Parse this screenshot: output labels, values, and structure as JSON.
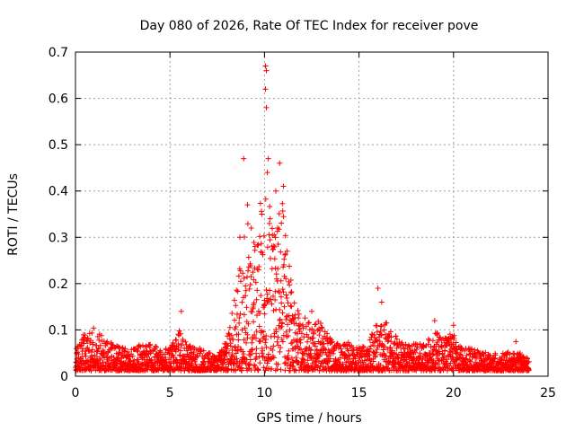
{
  "chart_data": {
    "type": "scatter",
    "title": "Day 080 of 2026, Rate Of TEC Index for receiver pove",
    "xlabel": "GPS time / hours",
    "ylabel": "ROTI / TECUs",
    "xlim": [
      0,
      25
    ],
    "ylim": [
      0,
      0.7
    ],
    "xticks": [
      0,
      5,
      10,
      15,
      20,
      25
    ],
    "yticks": [
      0,
      0.1,
      0.2,
      0.3,
      0.4,
      0.5,
      0.6,
      0.7
    ],
    "xtick_labels": [
      "0",
      "5",
      "10",
      "15",
      "20",
      "25"
    ],
    "ytick_labels": [
      "0",
      "0.1",
      "0.2",
      "0.3",
      "0.4",
      "0.5",
      "0.6",
      "0.7"
    ],
    "grid": true,
    "marker": "+",
    "color": "#ff0000",
    "data_range_x": [
      0,
      24
    ],
    "envelope": [
      [
        0.0,
        0.06
      ],
      [
        0.5,
        0.09
      ],
      [
        1.0,
        0.1
      ],
      [
        1.5,
        0.08
      ],
      [
        2.0,
        0.07
      ],
      [
        2.5,
        0.06
      ],
      [
        3.0,
        0.06
      ],
      [
        3.5,
        0.07
      ],
      [
        4.0,
        0.07
      ],
      [
        4.5,
        0.06
      ],
      [
        5.0,
        0.06
      ],
      [
        5.5,
        0.1
      ],
      [
        6.0,
        0.07
      ],
      [
        6.5,
        0.06
      ],
      [
        7.0,
        0.05
      ],
      [
        7.5,
        0.04
      ],
      [
        8.0,
        0.08
      ],
      [
        8.5,
        0.2
      ],
      [
        9.0,
        0.33
      ],
      [
        9.5,
        0.3
      ],
      [
        10.0,
        0.4
      ],
      [
        10.5,
        0.32
      ],
      [
        11.0,
        0.38
      ],
      [
        11.5,
        0.17
      ],
      [
        12.0,
        0.12
      ],
      [
        12.5,
        0.12
      ],
      [
        13.0,
        0.11
      ],
      [
        13.5,
        0.08
      ],
      [
        14.0,
        0.07
      ],
      [
        14.5,
        0.07
      ],
      [
        15.0,
        0.06
      ],
      [
        15.5,
        0.07
      ],
      [
        16.0,
        0.12
      ],
      [
        16.5,
        0.11
      ],
      [
        17.0,
        0.08
      ],
      [
        17.5,
        0.07
      ],
      [
        18.0,
        0.07
      ],
      [
        18.5,
        0.07
      ],
      [
        19.0,
        0.1
      ],
      [
        19.5,
        0.08
      ],
      [
        20.0,
        0.09
      ],
      [
        20.5,
        0.06
      ],
      [
        21.0,
        0.06
      ],
      [
        21.5,
        0.05
      ],
      [
        22.0,
        0.05
      ],
      [
        22.5,
        0.05
      ],
      [
        23.0,
        0.05
      ],
      [
        23.5,
        0.05
      ],
      [
        24.0,
        0.04
      ]
    ],
    "peaks": [
      [
        5.6,
        0.14
      ],
      [
        8.7,
        0.3
      ],
      [
        8.9,
        0.47
      ],
      [
        9.1,
        0.37
      ],
      [
        9.3,
        0.32
      ],
      [
        9.5,
        0.28
      ],
      [
        10.05,
        0.67
      ],
      [
        10.1,
        0.66
      ],
      [
        10.05,
        0.62
      ],
      [
        10.1,
        0.58
      ],
      [
        10.2,
        0.47
      ],
      [
        10.15,
        0.44
      ],
      [
        10.3,
        0.34
      ],
      [
        10.6,
        0.4
      ],
      [
        10.8,
        0.46
      ],
      [
        11.0,
        0.41
      ],
      [
        11.2,
        0.27
      ],
      [
        11.4,
        0.18
      ],
      [
        12.5,
        0.14
      ],
      [
        16.0,
        0.19
      ],
      [
        16.2,
        0.16
      ],
      [
        19.0,
        0.12
      ],
      [
        20.0,
        0.11
      ],
      [
        23.3,
        0.075
      ]
    ]
  }
}
